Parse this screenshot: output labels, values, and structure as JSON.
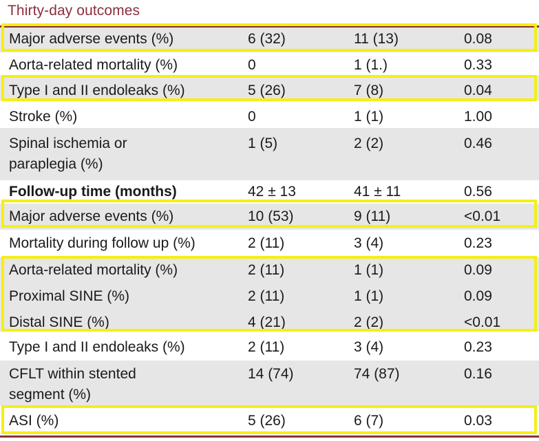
{
  "section_title": "Thirty-day outcomes",
  "colors": {
    "title": "#8b2e3c",
    "rule": "#8b2e3c",
    "row_shade": "#e6e6e7",
    "highlight": "#f5ef14"
  },
  "rows": [
    {
      "label": "Major adverse events (%)",
      "c1": "6 (32)",
      "c2": "11 (13)",
      "p": "0.08"
    },
    {
      "label": "Aorta-related mortality (%)",
      "c1": "0",
      "c2": "1 (1.)",
      "p": "0.33"
    },
    {
      "label": "Type I and II endoleaks (%)",
      "c1": "5 (26)",
      "c2": "7 (8)",
      "p": "0.04"
    },
    {
      "label": "Stroke (%)",
      "c1": "0",
      "c2": "1 (1)",
      "p": "1.00"
    },
    {
      "label": "Spinal ischemia or paraplegia (%)",
      "c1": "1 (5)",
      "c2": "2 (2)",
      "p": "0.46"
    },
    {
      "label": "Follow-up time (months)",
      "c1": "42 ± 13",
      "c2": "41 ± 11",
      "p": "0.56"
    },
    {
      "label": "Major adverse events (%)",
      "c1": "10 (53)",
      "c2": "9 (11)",
      "p": "<0.01"
    },
    {
      "label": "Mortality during follow up (%)",
      "c1": "2 (11)",
      "c2": "3 (4)",
      "p": "0.23"
    },
    {
      "label": "Aorta-related mortality (%)",
      "c1": "2 (11)",
      "c2": "1 (1)",
      "p": "0.09"
    },
    {
      "label": "Proximal SINE (%)",
      "c1": "2 (11)",
      "c2": "1 (1)",
      "p": "0.09"
    },
    {
      "label": "Distal SINE (%)",
      "c1": "4 (21)",
      "c2": "2 (2)",
      "p": "<0.01"
    },
    {
      "label": "Type I and II endoleaks (%)",
      "c1": "2 (11)",
      "c2": "3 (4)",
      "p": "0.23"
    },
    {
      "label": "CFLT within stented segment (%)",
      "c1": "14 (74)",
      "c2": "74 (87)",
      "p": "0.16"
    },
    {
      "label": "ASI (%)",
      "c1": "5 (26)",
      "c2": "6 (7)",
      "p": "0.03"
    }
  ]
}
